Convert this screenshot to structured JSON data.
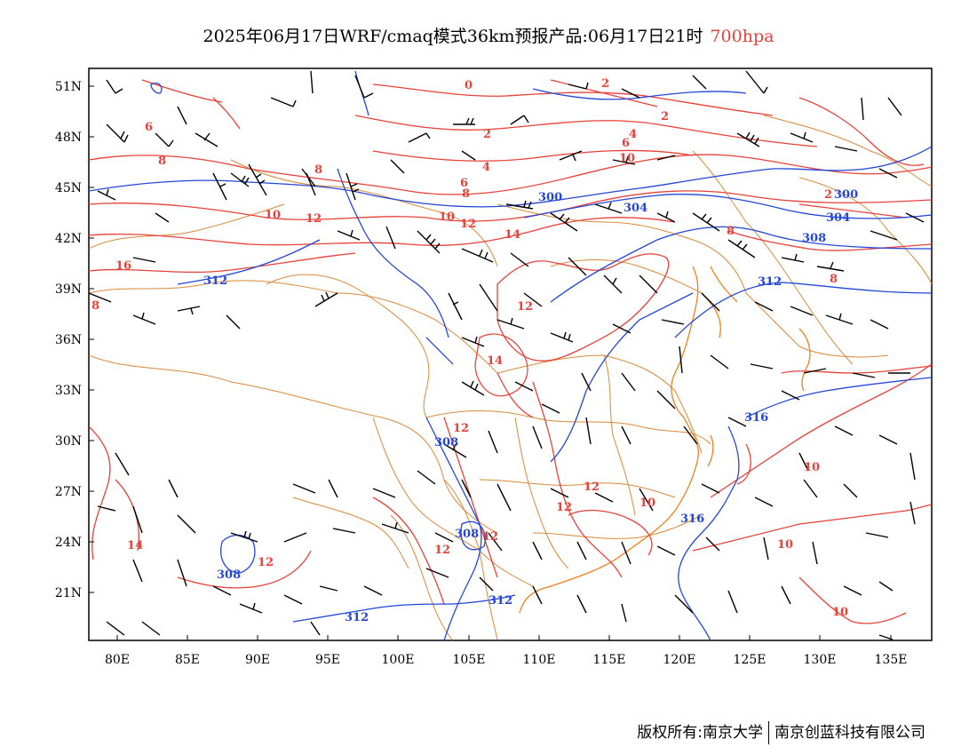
{
  "title": {
    "main": "2025年06月17日WRF/cmaq模式36km预报产品:06月17日21时",
    "level": "700hpa"
  },
  "colors": {
    "temperature": "#e8413a",
    "height": "#2446d8",
    "boundary": "#d9893a",
    "coast": "#f07f1a",
    "wind": "#000000"
  },
  "axes": {
    "lon_ticks": [
      "80E",
      "85E",
      "90E",
      "95E",
      "100E",
      "105E",
      "110E",
      "115E",
      "120E",
      "125E",
      "130E",
      "135E"
    ],
    "lat_ticks": [
      "51N",
      "48N",
      "45N",
      "42N",
      "39N",
      "36N",
      "33N",
      "30N",
      "27N",
      "24N",
      "21N"
    ]
  },
  "temperature_labels": [
    "0",
    "2",
    "2",
    "2",
    "4",
    "4",
    "6",
    "6",
    "6",
    "8",
    "8",
    "8",
    "8",
    "8",
    "8",
    "10",
    "10",
    "10",
    "10",
    "10",
    "10",
    "12",
    "12",
    "12",
    "12",
    "12",
    "12",
    "12",
    "12",
    "12",
    "14",
    "14",
    "14",
    "16",
    "10",
    "2"
  ],
  "height_labels": [
    "300",
    "304",
    "304",
    "308",
    "312",
    "312",
    "316",
    "316",
    "308",
    "308",
    "308",
    "312",
    "312",
    "300"
  ],
  "footer": {
    "left": "版权所有:南京大学",
    "right": "南京创蓝科技有限公司"
  }
}
